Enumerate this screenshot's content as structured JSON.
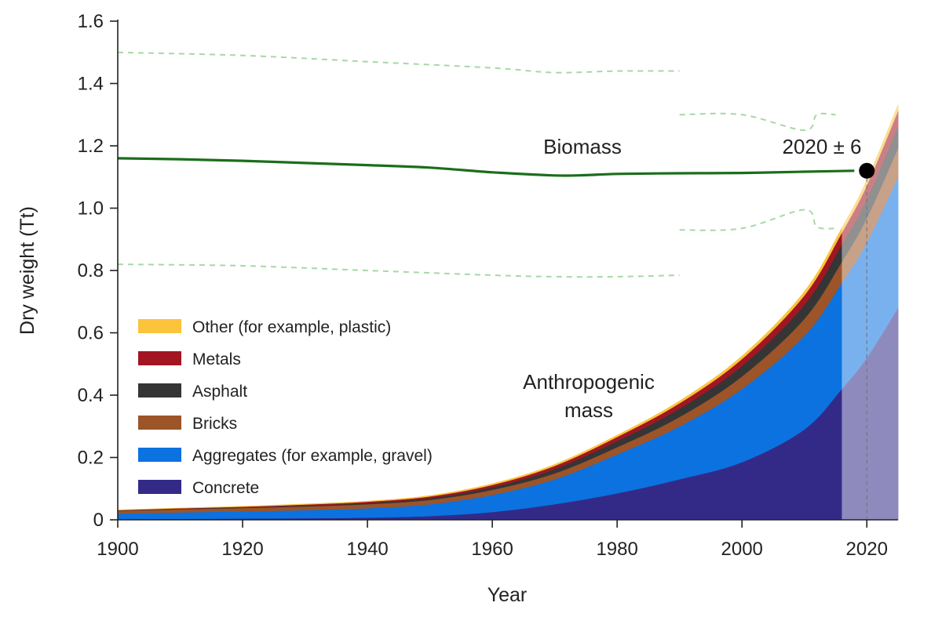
{
  "chart_data": {
    "type": "area",
    "xlabel": "Year",
    "ylabel": "Dry weight (Tt)",
    "xlim": [
      1900,
      2025
    ],
    "ylim": [
      0,
      1.6
    ],
    "x_ticks": [
      1900,
      1920,
      1940,
      1960,
      1980,
      2000,
      2020
    ],
    "x_tick_labels": [
      "1900",
      "1920",
      "1940",
      "1960",
      "1980",
      "2000",
      "2020"
    ],
    "y_ticks": [
      0,
      0.2,
      0.4,
      0.6,
      0.8,
      1.0,
      1.2,
      1.4,
      1.6
    ],
    "y_tick_labels": [
      "0",
      "0.2",
      "0.4",
      "0.6",
      "0.8",
      "1.0",
      "1.2",
      "1.4",
      "1.6"
    ],
    "grid": false,
    "legend_position": "bottom-left",
    "x": [
      1900,
      1910,
      1920,
      1930,
      1940,
      1950,
      1960,
      1970,
      1980,
      1990,
      2000,
      2010,
      2016,
      2020,
      2025
    ],
    "series": [
      {
        "name": "Concrete",
        "color": "#332a88",
        "values": [
          0.002,
          0.003,
          0.004,
          0.005,
          0.007,
          0.012,
          0.025,
          0.05,
          0.085,
          0.13,
          0.185,
          0.29,
          0.42,
          0.52,
          0.68
        ]
      },
      {
        "name": "Aggregates (for example, gravel)",
        "color": "#0b72e0",
        "values": [
          0.018,
          0.021,
          0.023,
          0.026,
          0.03,
          0.038,
          0.055,
          0.08,
          0.125,
          0.17,
          0.235,
          0.3,
          0.34,
          0.37,
          0.42
        ]
      },
      {
        "name": "Bricks",
        "color": "#9c5428",
        "values": [
          0.009,
          0.01,
          0.011,
          0.012,
          0.013,
          0.014,
          0.016,
          0.019,
          0.023,
          0.03,
          0.04,
          0.055,
          0.068,
          0.078,
          0.092
        ]
      },
      {
        "name": "Asphalt",
        "color": "#353535",
        "values": [
          0.001,
          0.0015,
          0.002,
          0.003,
          0.004,
          0.006,
          0.009,
          0.014,
          0.02,
          0.027,
          0.034,
          0.045,
          0.055,
          0.062,
          0.07
        ]
      },
      {
        "name": "Metals",
        "color": "#a11621",
        "values": [
          0.001,
          0.0015,
          0.002,
          0.003,
          0.004,
          0.005,
          0.007,
          0.01,
          0.013,
          0.017,
          0.022,
          0.03,
          0.038,
          0.043,
          0.05
        ]
      },
      {
        "name": "Other (for example, plastic)",
        "color": "#fcc43d",
        "values": [
          0.001,
          0.001,
          0.0015,
          0.002,
          0.002,
          0.003,
          0.004,
          0.005,
          0.006,
          0.008,
          0.01,
          0.013,
          0.016,
          0.018,
          0.02
        ]
      }
    ],
    "projection_start": 2016,
    "biomass": {
      "label": "Biomass",
      "color": "#1b6e1b",
      "x": [
        1900,
        1910,
        1920,
        1930,
        1940,
        1950,
        1960,
        1970,
        1975,
        1980,
        1990,
        2000,
        2010,
        2018
      ],
      "values": [
        1.16,
        1.157,
        1.152,
        1.145,
        1.138,
        1.13,
        1.115,
        1.105,
        1.106,
        1.11,
        1.112,
        1.113,
        1.117,
        1.12
      ],
      "upper_bound": {
        "segments": [
          {
            "x": [
              1900,
              1920,
              1940,
              1960,
              1970,
              1980,
              1990
            ],
            "values": [
              1.5,
              1.49,
              1.47,
              1.45,
              1.435,
              1.44,
              1.44
            ]
          },
          {
            "x": [
              1990,
              2000,
              2010,
              2012,
              2015
            ],
            "values": [
              1.3,
              1.3,
              1.25,
              1.3,
              1.3
            ]
          }
        ]
      },
      "lower_bound": {
        "segments": [
          {
            "x": [
              1900,
              1920,
              1940,
              1960,
              1970,
              1980,
              1990
            ],
            "values": [
              0.82,
              0.815,
              0.8,
              0.785,
              0.78,
              0.78,
              0.785
            ]
          },
          {
            "x": [
              1990,
              2000,
              2010,
              2012,
              2015
            ],
            "values": [
              0.93,
              0.935,
              0.995,
              0.94,
              0.935
            ]
          }
        ]
      }
    },
    "crossover": {
      "x": 2020,
      "y": 1.12,
      "label": "2020 ± 6"
    },
    "annotations": {
      "anthropogenic_line1": "Anthropogenic",
      "anthropogenic_line2": "mass"
    }
  }
}
